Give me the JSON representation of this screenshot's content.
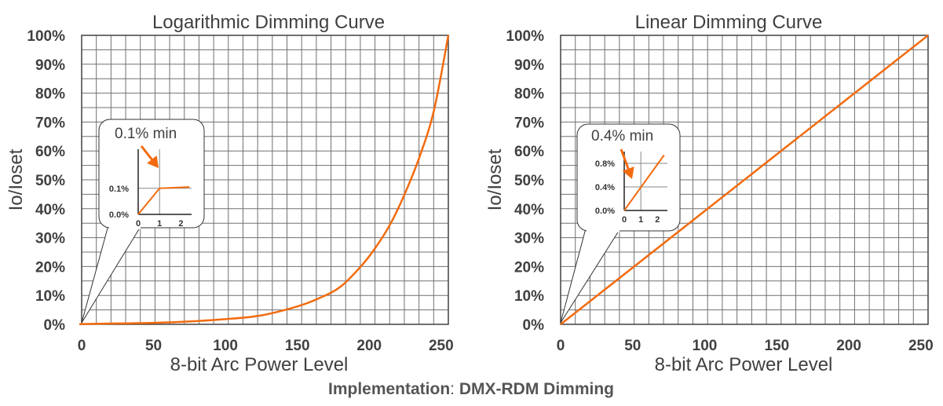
{
  "footer": {
    "label": "Implementation",
    "separator": ": ",
    "value": "DMX-RDM Dimming"
  },
  "colors": {
    "curve": "#F26B0F",
    "grid": "#707070",
    "axis": "#404040",
    "text": "#404040"
  },
  "chart_data": [
    {
      "type": "line",
      "title": "Logarithmic Dimming Curve",
      "xlabel": "8-bit Arc Power Level",
      "ylabel": "Io/Ioset",
      "xlim": [
        0,
        255
      ],
      "ylim": [
        0,
        100
      ],
      "x_tick_labels": [
        "0",
        "50",
        "100",
        "150",
        "200",
        "250"
      ],
      "x_ticks": [
        0,
        50,
        100,
        150,
        200,
        250
      ],
      "y_tick_labels": [
        "0%",
        "10%",
        "20%",
        "30%",
        "40%",
        "50%",
        "60%",
        "70%",
        "80%",
        "90%",
        "100%"
      ],
      "y_ticks": [
        0,
        10,
        20,
        30,
        40,
        50,
        60,
        70,
        80,
        90,
        100
      ],
      "grid": true,
      "series": [
        {
          "x": [
            0,
            1,
            25,
            50,
            75,
            100,
            125,
            150,
            165,
            180,
            195,
            205,
            215,
            225,
            235,
            245,
            255
          ],
          "y": [
            0,
            0.1,
            0.3,
            0.5,
            1.0,
            1.8,
            3.1,
            6.2,
            9.0,
            13.0,
            20.5,
            27.0,
            35.0,
            45.5,
            58.0,
            74.0,
            100
          ]
        }
      ],
      "inset": {
        "annotation": "0.1% min",
        "x_tick_labels": [
          "0",
          "1",
          "2"
        ],
        "y_tick_labels": [
          "0.0%",
          "0.1%"
        ],
        "series": {
          "x": [
            0,
            1,
            2.4
          ],
          "y": [
            0,
            0.1,
            0.105
          ]
        }
      }
    },
    {
      "type": "line",
      "title": "Linear Dimming Curve",
      "xlabel": "8-bit Arc Power Level",
      "ylabel": "Io/Ioset",
      "xlim": [
        0,
        255
      ],
      "ylim": [
        0,
        100
      ],
      "x_tick_labels": [
        "0",
        "50",
        "100",
        "150",
        "200",
        "250"
      ],
      "x_ticks": [
        0,
        50,
        100,
        150,
        200,
        250
      ],
      "y_tick_labels": [
        "0%",
        "10%",
        "20%",
        "30%",
        "40%",
        "50%",
        "60%",
        "70%",
        "80%",
        "90%",
        "100%"
      ],
      "y_ticks": [
        0,
        10,
        20,
        30,
        40,
        50,
        60,
        70,
        80,
        90,
        100
      ],
      "grid": true,
      "series": [
        {
          "x": [
            0,
            255
          ],
          "y": [
            0,
            100
          ]
        }
      ],
      "inset": {
        "annotation": "0.4% min",
        "x_tick_labels": [
          "0",
          "1",
          "2"
        ],
        "y_tick_labels": [
          "0.0%",
          "0.4%",
          "0.8%"
        ],
        "series": {
          "x": [
            0,
            2.4
          ],
          "y": [
            0,
            0.94
          ]
        }
      }
    }
  ]
}
